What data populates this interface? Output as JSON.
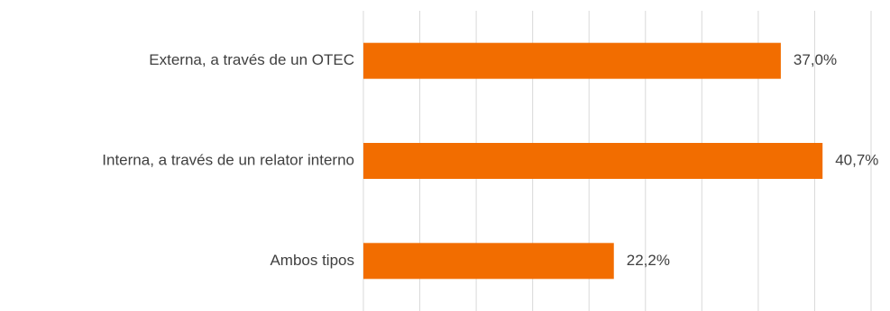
{
  "chart_data": {
    "type": "bar",
    "orientation": "horizontal",
    "categories": [
      "Externa, a través de un OTEC",
      "Interna, a través de un relator interno",
      "Ambos tipos"
    ],
    "values": [
      37.0,
      40.7,
      22.2
    ],
    "data_labels": [
      "37,0%",
      "40,7%",
      "22,2%"
    ],
    "xlim": [
      0,
      45
    ],
    "x_gridlines": [
      0,
      5,
      10,
      15,
      20,
      25,
      30,
      35,
      40,
      45
    ],
    "grid": true,
    "legend": "none",
    "title": "",
    "xlabel": "",
    "ylabel": "",
    "bar_color": "#f26d00"
  }
}
